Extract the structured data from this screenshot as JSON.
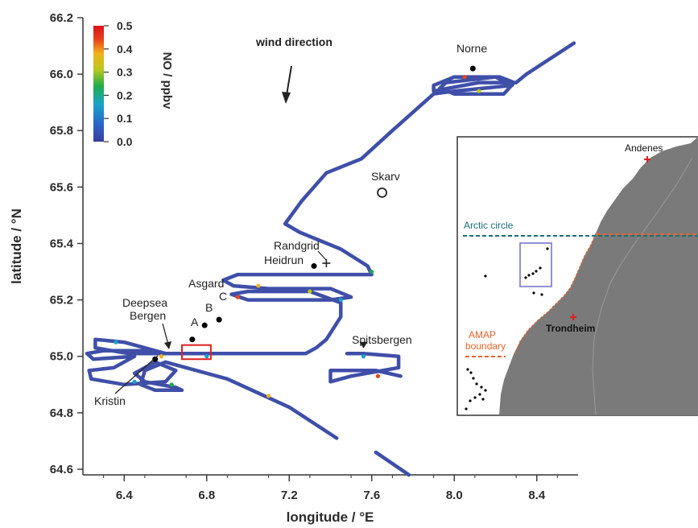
{
  "chart_data": {
    "type": "line",
    "xlabel": "longitude / °E",
    "ylabel": "latitude / °N",
    "xlim": [
      6.2,
      8.6
    ],
    "ylim": [
      64.58,
      66.2
    ],
    "x_ticks": [
      "6.4",
      "6.8",
      "7.2",
      "7.6",
      "8.0",
      "8.4"
    ],
    "y_ticks": [
      "64.6",
      "64.8",
      "65.0",
      "65.2",
      "65.4",
      "65.6",
      "65.8",
      "66.0",
      "66.2"
    ],
    "colorbar": {
      "title": "NO / ppbv",
      "range": [
        0.0,
        0.5
      ],
      "ticks": [
        "0.0",
        "0.1",
        "0.2",
        "0.3",
        "0.4",
        "0.5"
      ],
      "colors": [
        "#3a3e9c",
        "#2d63c8",
        "#18a3c9",
        "#1fae4a",
        "#b8c81d",
        "#f1b21a",
        "#e8441b",
        "#d8131b"
      ]
    },
    "track_color": "#3f4fa8",
    "flight_track": [
      [
        8.58,
        66.11
      ],
      [
        8.35,
        66.0
      ],
      [
        8.3,
        65.97
      ],
      [
        8.12,
        65.97
      ],
      [
        7.97,
        65.95
      ],
      [
        7.9,
        65.94
      ],
      [
        7.9,
        65.96
      ],
      [
        8.0,
        65.99
      ],
      [
        8.22,
        65.99
      ],
      [
        8.29,
        65.97
      ],
      [
        8.24,
        65.93
      ],
      [
        8.0,
        65.93
      ],
      [
        7.93,
        65.95
      ],
      [
        7.96,
        65.97
      ],
      [
        8.2,
        65.99
      ],
      [
        8.28,
        65.96
      ],
      [
        8.0,
        65.94
      ],
      [
        7.9,
        65.93
      ],
      [
        7.7,
        65.8
      ],
      [
        7.55,
        65.7
      ],
      [
        7.38,
        65.65
      ],
      [
        7.26,
        65.55
      ],
      [
        7.18,
        65.47
      ],
      [
        7.25,
        65.44
      ],
      [
        7.45,
        65.38
      ],
      [
        7.58,
        65.32
      ],
      [
        7.6,
        65.29
      ],
      [
        7.5,
        65.29
      ],
      [
        6.95,
        65.29
      ],
      [
        6.88,
        65.27
      ],
      [
        6.93,
        65.25
      ],
      [
        7.1,
        65.24
      ],
      [
        7.4,
        65.24
      ],
      [
        7.5,
        65.21
      ],
      [
        7.4,
        65.2
      ],
      [
        7.0,
        65.2
      ],
      [
        6.92,
        65.22
      ],
      [
        7.0,
        65.23
      ],
      [
        7.3,
        65.23
      ],
      [
        7.45,
        65.19
      ],
      [
        7.45,
        65.14
      ],
      [
        7.38,
        65.06
      ],
      [
        7.33,
        65.03
      ],
      [
        7.28,
        65.01
      ],
      [
        7.0,
        65.01
      ],
      [
        6.75,
        65.01
      ],
      [
        6.6,
        65.01
      ],
      [
        6.4,
        65.05
      ],
      [
        6.26,
        65.06
      ],
      [
        6.26,
        65.03
      ],
      [
        6.42,
        65.01
      ],
      [
        6.6,
        65.01
      ],
      [
        6.5,
        65.02
      ],
      [
        6.3,
        65.02
      ],
      [
        6.22,
        65.01
      ],
      [
        6.25,
        64.99
      ],
      [
        6.45,
        65.0
      ],
      [
        6.35,
        64.96
      ],
      [
        6.23,
        64.95
      ],
      [
        6.24,
        64.92
      ],
      [
        6.4,
        64.9
      ],
      [
        6.6,
        64.91
      ],
      [
        6.65,
        64.95
      ],
      [
        6.55,
        64.98
      ],
      [
        6.45,
        64.94
      ],
      [
        6.5,
        64.91
      ],
      [
        6.65,
        64.89
      ],
      [
        6.68,
        64.88
      ],
      [
        6.55,
        64.88
      ],
      [
        6.48,
        64.9
      ],
      [
        6.5,
        64.95
      ],
      [
        6.6,
        64.98
      ],
      [
        6.9,
        64.92
      ],
      [
        7.2,
        64.82
      ],
      [
        7.43,
        64.71
      ]
    ],
    "track_segment_2": [
      [
        7.48,
        65.01
      ],
      [
        7.56,
        65.01
      ],
      [
        7.73,
        65.0
      ],
      [
        7.73,
        64.96
      ],
      [
        7.5,
        64.93
      ],
      [
        7.4,
        64.91
      ],
      [
        7.4,
        64.95
      ],
      [
        7.62,
        64.95
      ],
      [
        7.74,
        64.93
      ]
    ],
    "track_segment_3": [
      [
        7.62,
        64.66
      ],
      [
        7.7,
        64.62
      ],
      [
        7.78,
        64.58
      ]
    ],
    "sites": [
      {
        "name": "Norne",
        "lon": 8.09,
        "lat": 66.02,
        "marker": "dot"
      },
      {
        "name": "Skarv",
        "lon": 7.65,
        "lat": 65.58,
        "marker": "circle"
      },
      {
        "name": "Randgrid",
        "lon": 7.38,
        "lat": 65.33,
        "marker": "plus"
      },
      {
        "name": "Heidrun",
        "lon": 7.32,
        "lat": 65.32,
        "marker": "dot"
      },
      {
        "name": "A",
        "lon": 6.73,
        "lat": 65.06,
        "marker": "dot"
      },
      {
        "name": "B",
        "lon": 6.79,
        "lat": 65.11,
        "marker": "dot"
      },
      {
        "name": "C",
        "lon": 6.86,
        "lat": 65.13,
        "marker": "dot"
      },
      {
        "name": "Deepsea Bergen",
        "lon": 6.58,
        "lat": 65.01,
        "marker": "arrow"
      },
      {
        "name": "Kristin",
        "lon": 6.55,
        "lat": 64.99,
        "marker": "dot"
      },
      {
        "name": "Spitsbergen",
        "lon": 7.56,
        "lat": 65.0,
        "marker": "triangle"
      }
    ],
    "annotations": {
      "asgard": "Asgard",
      "wind": "wind direction",
      "deepsea_line1": "Deepsea",
      "deepsea_line2": "Bergen",
      "randgrid": "Randgrid",
      "heidrun": "Heidrun",
      "a": "A",
      "b": "B",
      "c": "C",
      "norne": "Norne",
      "skarv": "Skarv",
      "kristin": "Kristin",
      "spitsbergen": "Spitsbergen"
    },
    "highlight_box": {
      "lon": [
        6.68,
        6.82
      ],
      "lat": [
        64.99,
        65.04
      ],
      "color": "#e02020"
    }
  },
  "inset": {
    "labels": {
      "andenes": "Andenes",
      "arctic": "Arctic circle",
      "amap1": "AMAP",
      "amap2": "boundary",
      "trondheim": "Trondheim"
    },
    "colors": {
      "land": "#7a7a7a",
      "arctic": "#1b6e7a",
      "amap": "#e8642b",
      "box": "#6f6fc8",
      "station": "#e02020"
    }
  }
}
